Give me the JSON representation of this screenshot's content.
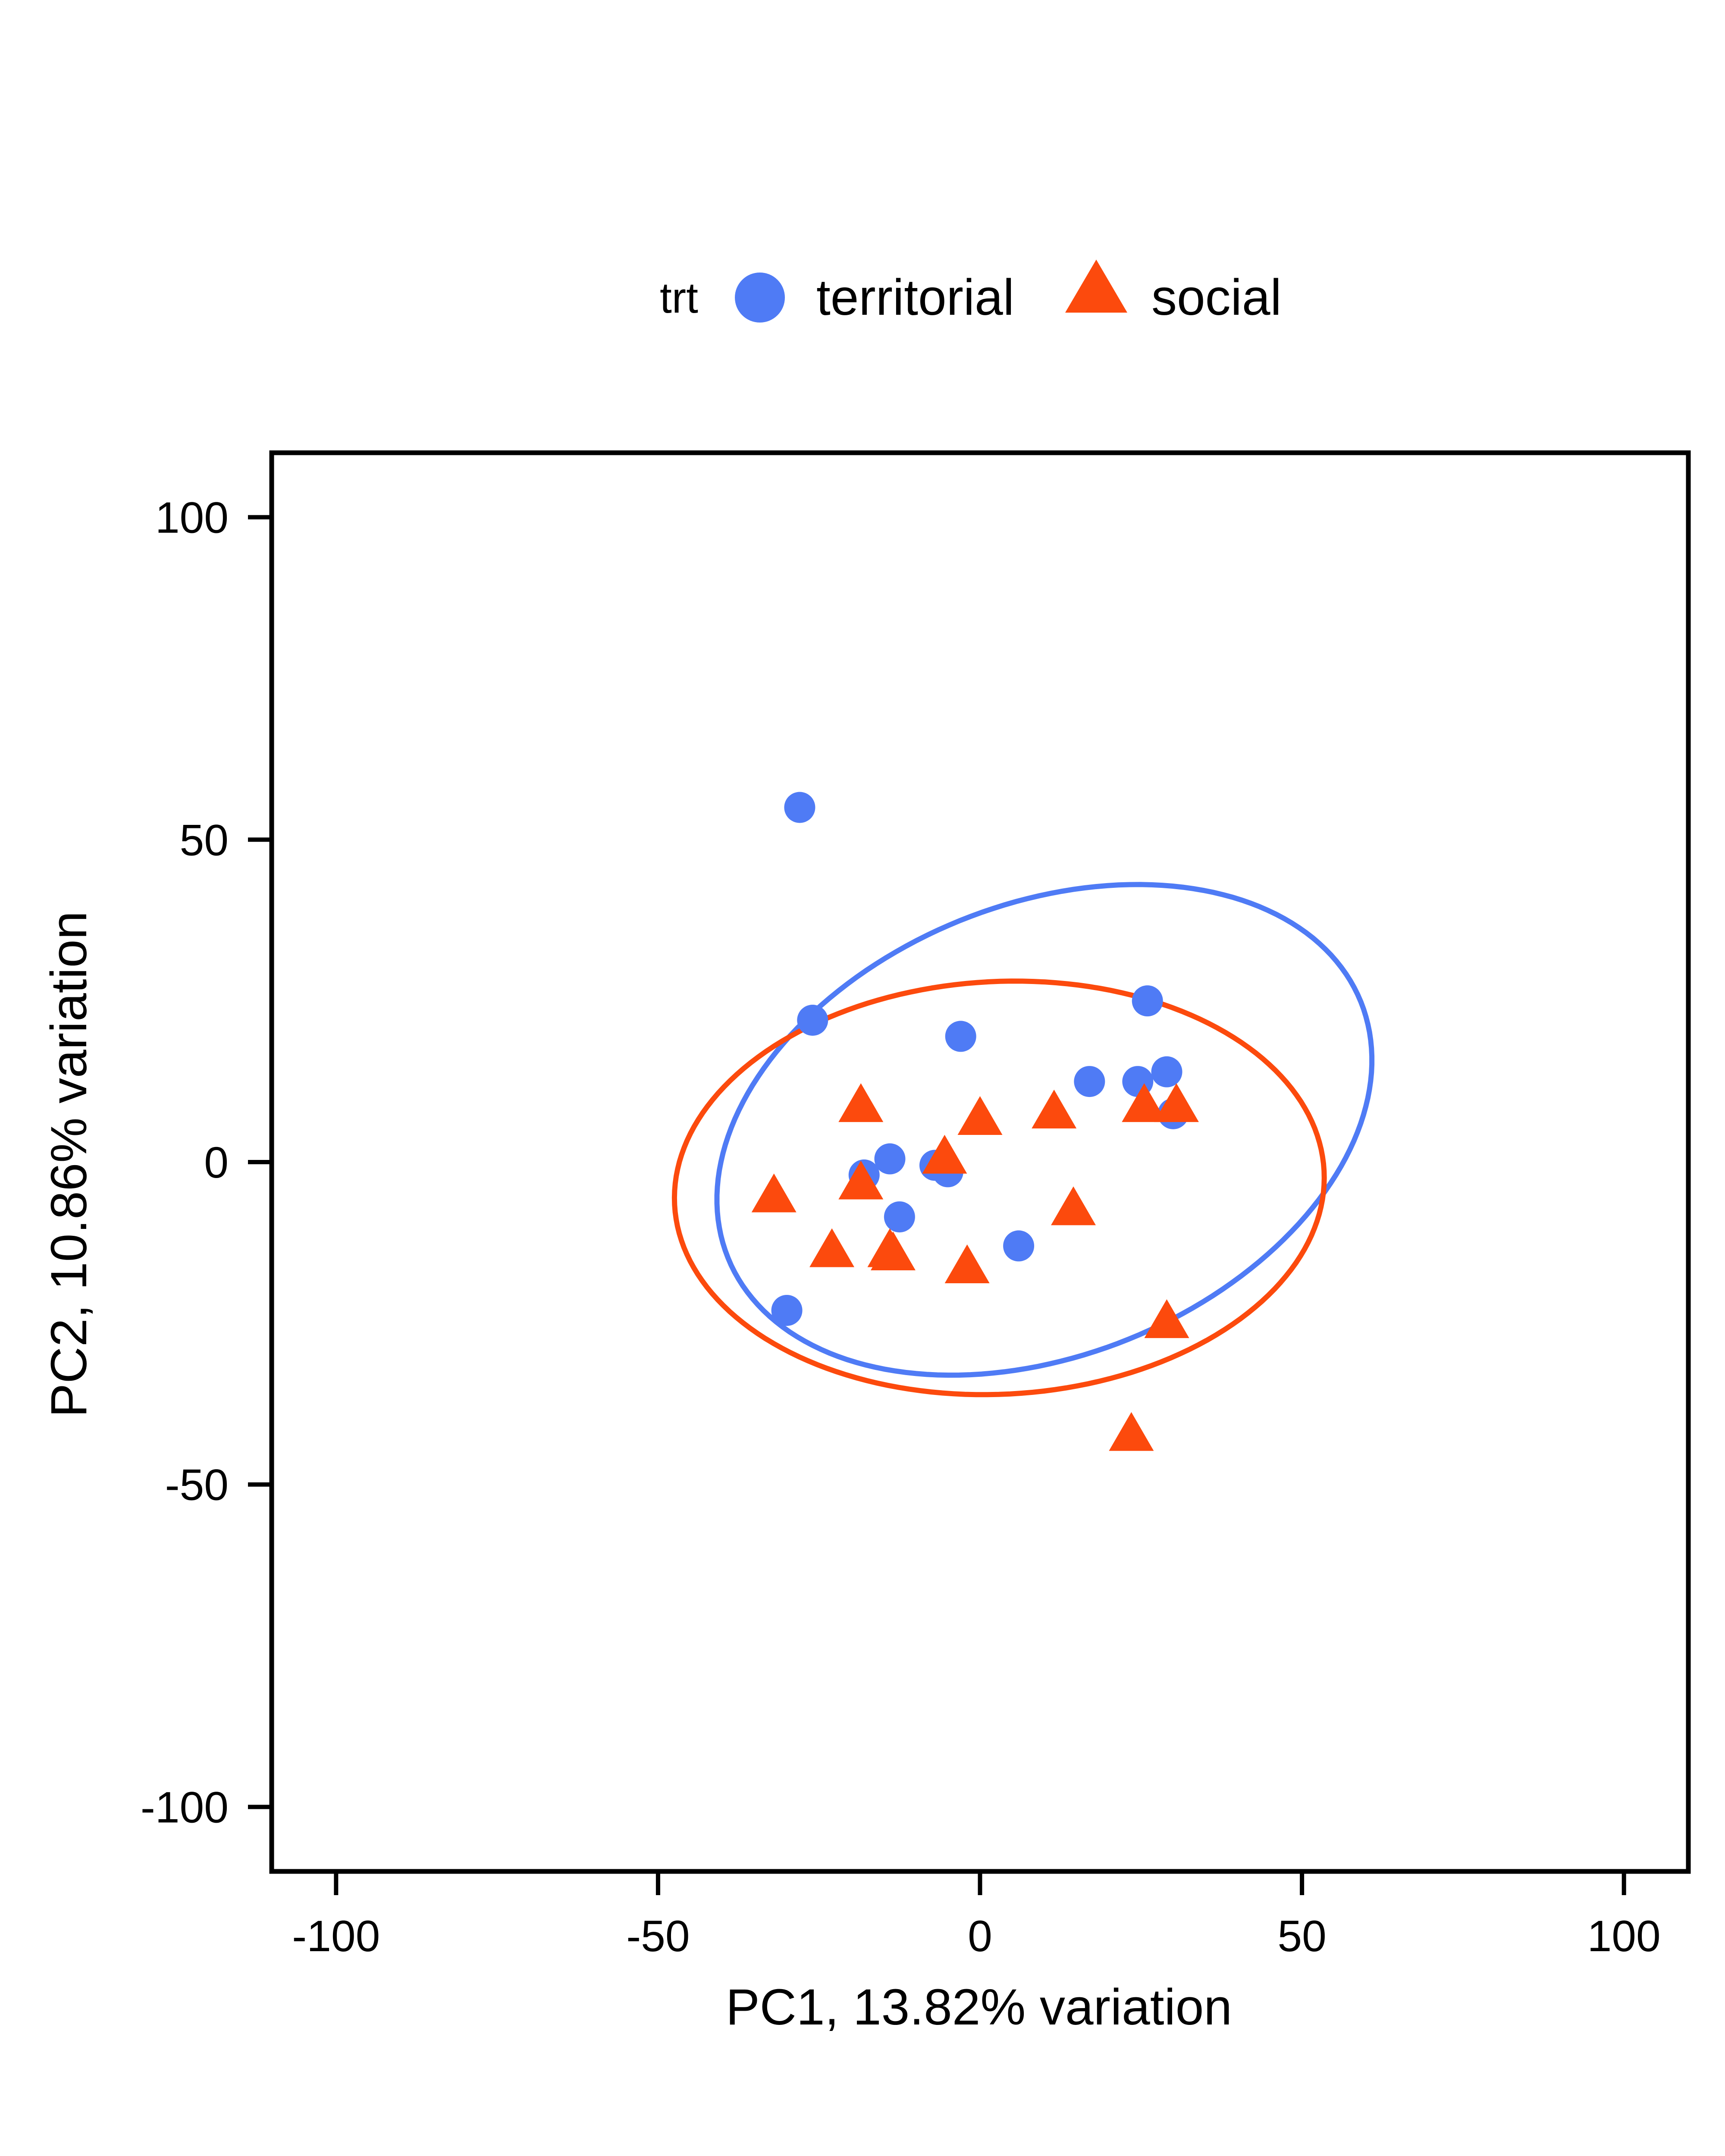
{
  "chart_data": {
    "type": "scatter",
    "title": "",
    "xlabel": "PC1, 13.82% variation",
    "ylabel": "PC2, 10.86% variation",
    "xlim": [
      -110,
      110
    ],
    "ylim": [
      -110,
      110
    ],
    "xticks": [
      -100,
      -50,
      0,
      50,
      100
    ],
    "yticks": [
      -100,
      -50,
      0,
      50,
      100
    ],
    "xtick_labels": [
      "-100",
      "-50",
      "0",
      "50",
      "100"
    ],
    "ytick_labels": [
      "-100",
      "-50",
      "0",
      "50",
      "100"
    ],
    "grid": false,
    "legend": {
      "title": "trt",
      "position": "top"
    },
    "series": [
      {
        "name": "territorial",
        "color": "#4f7bf5",
        "marker": "circle",
        "points": [
          {
            "x": -28,
            "y": 55
          },
          {
            "x": -26,
            "y": 22
          },
          {
            "x": -3,
            "y": 19.5
          },
          {
            "x": 26,
            "y": 25
          },
          {
            "x": 17,
            "y": 12.5
          },
          {
            "x": 24.5,
            "y": 12.5
          },
          {
            "x": 29,
            "y": 14
          },
          {
            "x": 30,
            "y": 7.5
          },
          {
            "x": -14,
            "y": 0.5
          },
          {
            "x": -18,
            "y": -2
          },
          {
            "x": -7,
            "y": -0.5
          },
          {
            "x": -5,
            "y": -1.5
          },
          {
            "x": -12.5,
            "y": -8.5
          },
          {
            "x": 6,
            "y": -13
          },
          {
            "x": -30,
            "y": -23
          }
        ],
        "ellipse": {
          "cx": 10,
          "cy": 5,
          "rx": 53,
          "ry": 35,
          "angle_deg": 22
        }
      },
      {
        "name": "social",
        "color": "#fc4a0d",
        "marker": "triangle",
        "points": [
          {
            "x": -18.5,
            "y": 8.5
          },
          {
            "x": -5.5,
            "y": 0.5
          },
          {
            "x": 0,
            "y": 6.5
          },
          {
            "x": 11.5,
            "y": 7.5
          },
          {
            "x": 25.5,
            "y": 8.5
          },
          {
            "x": 30.5,
            "y": 8.5
          },
          {
            "x": -18.5,
            "y": -3.5
          },
          {
            "x": -32,
            "y": -5.5
          },
          {
            "x": 14.5,
            "y": -7.5
          },
          {
            "x": -23,
            "y": -14
          },
          {
            "x": -14,
            "y": -14
          },
          {
            "x": -13.5,
            "y": -14.5
          },
          {
            "x": -2,
            "y": -16.5
          },
          {
            "x": 29,
            "y": -25
          },
          {
            "x": 23.5,
            "y": -42.5
          }
        ],
        "ellipse": {
          "cx": 3,
          "cy": -4,
          "rx": 50.5,
          "ry": 32,
          "angle_deg": 3
        }
      }
    ]
  }
}
